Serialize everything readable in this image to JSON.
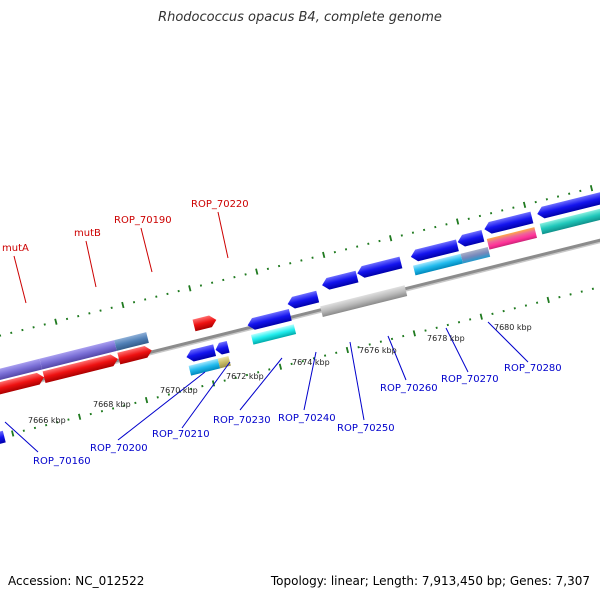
{
  "title": "Rhodococcus opacus B4, complete genome",
  "footer": {
    "accession": "Accession: NC_012522",
    "summary": "Topology: linear; Length: 7,913,450 bp; Genes: 7,307"
  },
  "colors": {
    "upper_label": "#cc0000",
    "lower_label": "#0000cc",
    "tick": "#1f7a1f",
    "axis": "#888888"
  },
  "kbp_labels": [
    "7666 kbp",
    "7668 kbp",
    "7670 kbp",
    "7672 kbp",
    "7674 kbp",
    "7676 kbp",
    "7678 kbp",
    "7680 kbp"
  ],
  "upper_labels": [
    "mutA",
    "mutB",
    "ROP_70190",
    "ROP_70220"
  ],
  "lower_labels": [
    "ROP_70160",
    "ROP_70200",
    "ROP_70210",
    "ROP_70230",
    "ROP_70240",
    "ROP_70250",
    "ROP_70260",
    "ROP_70270",
    "ROP_70280"
  ]
}
